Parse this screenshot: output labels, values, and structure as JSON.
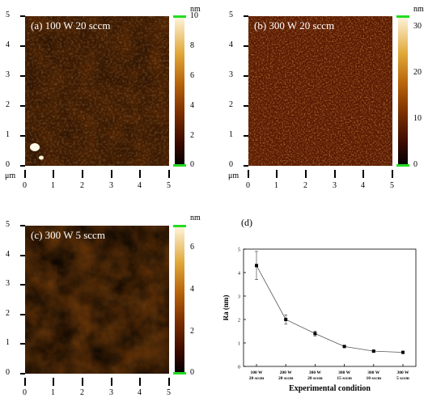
{
  "panels": [
    {
      "label": "(a) 100 W 20 sccm",
      "unit": "nm",
      "colorbar_ticks": [
        "10",
        "8",
        "6",
        "4",
        "2",
        "0"
      ],
      "colorbar_max": 10
    },
    {
      "label": "(b) 300 W 20 sccm",
      "unit": "nm",
      "colorbar_ticks": [
        "30",
        "20",
        "10",
        "0"
      ],
      "colorbar_max": 32
    },
    {
      "label": "(c) 300 W 5 sccm",
      "unit": "nm",
      "colorbar_ticks": [
        "6",
        "4",
        "2",
        "0"
      ],
      "colorbar_max": 7
    }
  ],
  "axis": {
    "unit": "μm",
    "y_ticks": [
      "5",
      "4",
      "3",
      "2",
      "1",
      "0"
    ],
    "x_ticks": [
      "0",
      "1",
      "2",
      "3",
      "4",
      "5"
    ]
  },
  "colors": {
    "colormap_low": "#000000",
    "colormap_mid": "#a0520a",
    "colormap_high": "#ffffff",
    "colorbar_marker": "#22dd22"
  },
  "chart_data": {
    "type": "line",
    "panel_label": "(d)",
    "categories": [
      "100 W\n20 sccm",
      "200 W\n20 sccm",
      "300 W\n20 sccm",
      "300 W\n15 sccm",
      "300 W\n10 sccm",
      "300 W\n5 sccm"
    ],
    "values": [
      4.3,
      2.0,
      1.4,
      0.85,
      0.65,
      0.6
    ],
    "errors": [
      0.6,
      0.2,
      0.1,
      0.03,
      0.03,
      0.03
    ],
    "xlabel": "Experimental condition",
    "ylabel": "Ra (nm)",
    "ylim": [
      0,
      5
    ],
    "yticks": [
      "0",
      "1",
      "2",
      "3",
      "4",
      "5"
    ]
  }
}
